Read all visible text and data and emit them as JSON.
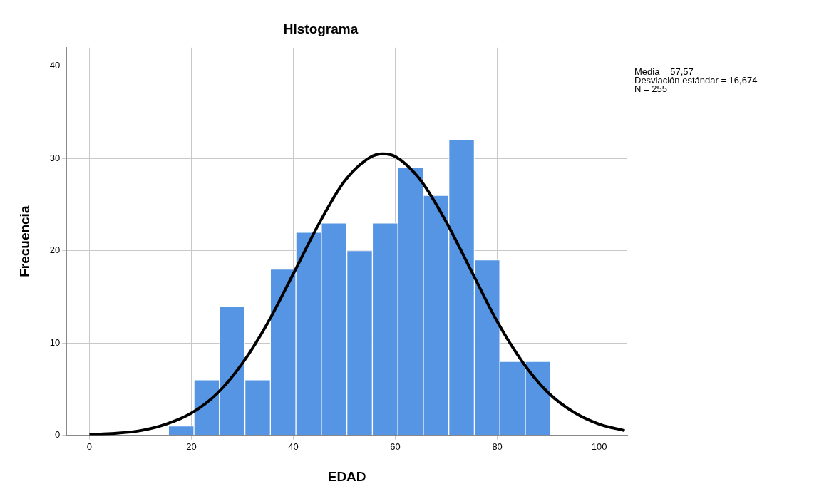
{
  "chart_data": {
    "type": "histogram",
    "title": "Histograma",
    "xlabel": "EDAD",
    "ylabel": "Frecuencia",
    "annotations": [
      "Media = 57,57",
      "Desviación estándar = 16,674",
      "N = 255"
    ],
    "series": [
      {
        "type": "histogram",
        "color": "#5595e3",
        "bins": [
          15.5,
          20.5,
          25.5,
          30.5,
          35.5,
          40.5,
          45.5,
          50.5,
          55.5,
          60.5,
          65.5,
          70.5,
          75.5,
          80.5,
          85.5,
          90.5
        ],
        "values": [
          1,
          6,
          14,
          6,
          18,
          22,
          23,
          20,
          23,
          29,
          26,
          32,
          19,
          8,
          8
        ]
      },
      {
        "type": "line",
        "color": "#000000",
        "x": [
          0,
          5,
          10,
          15,
          20,
          25,
          30,
          35,
          40,
          45,
          50,
          55,
          57.57,
          60,
          65,
          70,
          75,
          80,
          85,
          90,
          95,
          100,
          105
        ],
        "values": [
          0.08,
          0.2,
          0.5,
          1.2,
          2.4,
          4.5,
          7.8,
          12.2,
          17.5,
          22.9,
          27.5,
          30.1,
          30.5,
          30.2,
          27.6,
          23.1,
          17.7,
          12.3,
          7.9,
          4.6,
          2.5,
          1.2,
          0.5
        ]
      }
    ],
    "xlim": [
      -4.5,
      105.5
    ],
    "xticks": [
      0,
      20,
      40,
      60,
      80,
      100
    ],
    "ylim": [
      0,
      42
    ],
    "yticks": [
      0,
      10,
      20,
      30,
      40
    ],
    "grid": true,
    "legend": false,
    "marker": "none",
    "line_style": "solid"
  }
}
